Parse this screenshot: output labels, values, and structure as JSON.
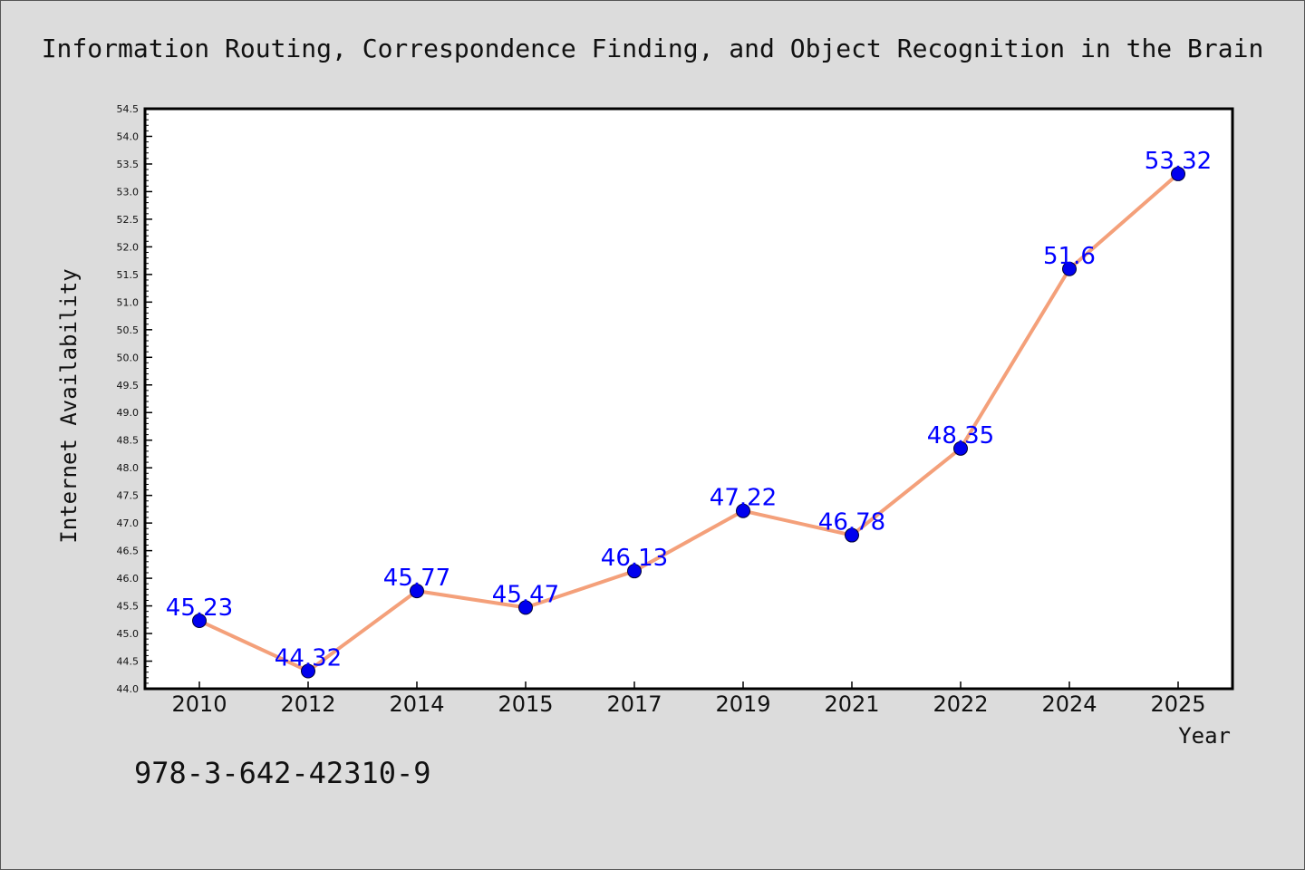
{
  "chart_data": {
    "type": "line",
    "title": "Information Routing, Correspondence Finding, and Object Recognition in the Brain",
    "xlabel": "Year",
    "ylabel": "Internet Availability",
    "categories": [
      "2010",
      "2012",
      "2014",
      "2015",
      "2017",
      "2019",
      "2021",
      "2022",
      "2024",
      "2025"
    ],
    "series": [
      {
        "values": [
          45.23,
          44.32,
          45.77,
          45.47,
          46.13,
          47.22,
          46.78,
          48.35,
          51.6,
          53.32
        ],
        "data_labels": [
          "45.23",
          "44.32",
          "45.77",
          "45.47",
          "46.13",
          "47.22",
          "46.78",
          "48.35",
          "51.6",
          "53.32"
        ]
      }
    ],
    "ylim": [
      44.0,
      54.5
    ],
    "yticks": [
      "44.0",
      "44.5",
      "45.0",
      "45.5",
      "46.0",
      "46.5",
      "47.0",
      "47.5",
      "48.0",
      "48.5",
      "49.0",
      "49.5",
      "50.0",
      "50.5",
      "51.0",
      "51.5",
      "52.0",
      "52.5",
      "53.0",
      "53.5",
      "54.0",
      "54.5"
    ],
    "grid": false,
    "colors": {
      "line": "#f4a07a",
      "marker": "#0000ee",
      "data_label": "#0000ff",
      "background": "#dcdcdc",
      "plot_background": "#ffffff"
    }
  },
  "footer_text": "978-3-642-42310-9"
}
